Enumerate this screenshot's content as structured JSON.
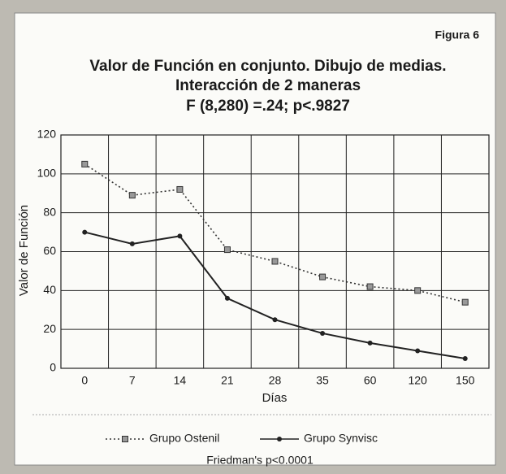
{
  "chart_data": {
    "type": "line",
    "figure_label": "Figura 6",
    "title": [
      "Valor de Función en conjunto. Dibujo de medias.",
      "Interacción de 2 maneras",
      "F (8,280) =.24; p<.9827"
    ],
    "categories": [
      "0",
      "7",
      "14",
      "21",
      "28",
      "35",
      "60",
      "120",
      "150"
    ],
    "series": [
      {
        "name": "Grupo Ostenil",
        "color": "#333333",
        "line_style": "dotted",
        "marker": "square",
        "values": [
          105,
          89,
          92,
          61,
          55,
          47,
          42,
          40,
          34
        ]
      },
      {
        "name": "Grupo Synvisc",
        "color": "#222222",
        "line_style": "solid",
        "marker": "circle",
        "values": [
          70,
          64,
          68,
          36,
          25,
          18,
          13,
          9,
          5
        ]
      }
    ],
    "ylim": [
      0,
      120
    ],
    "yticks": [
      0,
      20,
      40,
      60,
      80,
      100,
      120
    ],
    "y_label": "Valor de Función",
    "x_label": "Días",
    "grid": true,
    "footnote": "Friedman's p<0.0001"
  }
}
